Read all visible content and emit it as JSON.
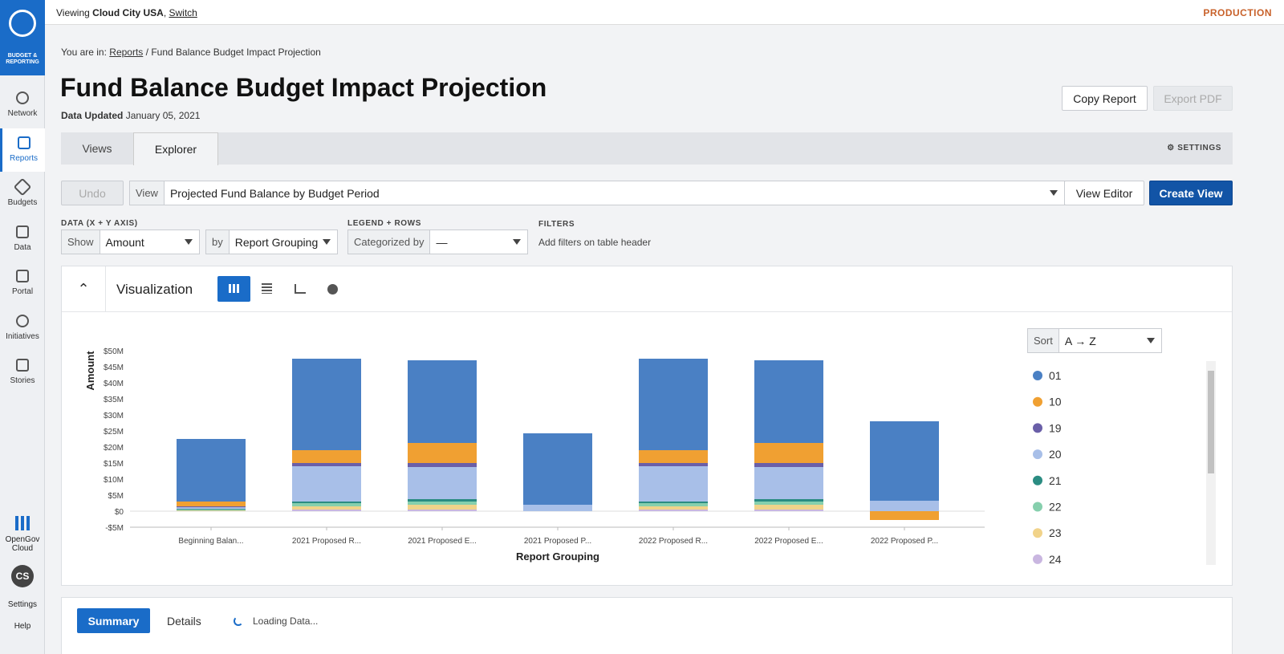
{
  "top_bar": {
    "viewing_prefix": "Viewing",
    "org": "Cloud City USA",
    "switch": "Switch",
    "environment": "PRODUCTION"
  },
  "sidebar": {
    "logo_label": "BUDGET & REPORTING",
    "items": [
      "Network",
      "Reports",
      "Budgets",
      "Data",
      "Portal",
      "Initiatives",
      "Stories"
    ],
    "cloud": "OpenGov Cloud",
    "avatar": "CS",
    "settings": "Settings",
    "help": "Help"
  },
  "breadcrumb": {
    "prefix": "You are in:",
    "link": "Reports",
    "separator": "/",
    "current": "Fund Balance Budget Impact Projection"
  },
  "header": {
    "title": "Fund Balance Budget Impact Projection",
    "updated_label": "Data Updated",
    "updated_date": "January 05, 2021",
    "copy_button": "Copy Report",
    "export_button": "Export PDF"
  },
  "tabs": [
    "Views",
    "Explorer"
  ],
  "settings": "SETTINGS",
  "toolbar": {
    "undo": "Undo",
    "view_label": "View",
    "view_value": "Projected Fund Balance by Budget Period",
    "view_editor": "View Editor",
    "create_view": "Create View"
  },
  "controls": {
    "data_label": "DATA (X + Y AXIS)",
    "show_label": "Show",
    "show_value": "Amount",
    "by_label": "by",
    "by_value": "Report Grouping",
    "legend_label": "LEGEND + ROWS",
    "categorized_label": "Categorized by",
    "categorized_value": "—",
    "filters_label": "FILTERS",
    "filters_hint": "Add filters on table header"
  },
  "visualization": {
    "title": "Visualization",
    "sort_label": "Sort",
    "sort_value": "A → Z"
  },
  "chart_data": {
    "type": "stacked_bar",
    "x_label": "Report Grouping",
    "y_label": "Amount",
    "categories": [
      "Beginning Balan...",
      "2021 Proposed R...",
      "2021 Proposed E...",
      "2021 Proposed P...",
      "2022 Proposed R...",
      "2022 Proposed E...",
      "2022 Proposed P..."
    ],
    "series": [
      {
        "name": "24",
        "color": "#c9b6e0",
        "values": [
          0,
          0.5,
          0.5,
          0,
          0.5,
          0.5,
          0
        ]
      },
      {
        "name": "23",
        "color": "#f1d38a",
        "values": [
          0.2,
          1,
          1.5,
          0,
          1,
          1.5,
          0
        ]
      },
      {
        "name": "22",
        "color": "#86cfad",
        "values": [
          0.2,
          1,
          1,
          0,
          1,
          1,
          0
        ]
      },
      {
        "name": "21",
        "color": "#2b8c82",
        "values": [
          0.3,
          0.5,
          0.75,
          0,
          0.5,
          0.75,
          0
        ]
      },
      {
        "name": "20",
        "color": "#a8bfe8",
        "values": [
          0.5,
          11,
          10,
          2,
          11,
          10,
          3.25
        ]
      },
      {
        "name": "19",
        "color": "#6a5fa8",
        "values": [
          0.3,
          1,
          1.25,
          0,
          1,
          1.25,
          0
        ]
      },
      {
        "name": "10",
        "color": "#f0a032",
        "values": [
          1.5,
          4,
          6.25,
          0,
          4,
          6.25,
          -2.75
        ]
      },
      {
        "name": "01",
        "color": "#4a80c4",
        "values": [
          19.5,
          28.5,
          25.75,
          22.25,
          28.5,
          25.75,
          24.75
        ]
      }
    ],
    "legend_order": [
      7,
      6,
      5,
      4,
      3,
      2,
      1,
      0
    ],
    "ylim": [
      -5,
      50
    ],
    "yticks": [
      {
        "value": -5,
        "label": "-$5M"
      },
      {
        "value": 0,
        "label": "$0"
      },
      {
        "value": 5,
        "label": "$5M"
      },
      {
        "value": 10,
        "label": "$10M"
      },
      {
        "value": 15,
        "label": "$15M"
      },
      {
        "value": 20,
        "label": "$20M"
      },
      {
        "value": 25,
        "label": "$25M"
      },
      {
        "value": 30,
        "label": "$30M"
      },
      {
        "value": 35,
        "label": "$35M"
      },
      {
        "value": 40,
        "label": "$40M"
      },
      {
        "value": 45,
        "label": "$45M"
      },
      {
        "value": 50,
        "label": "$50M"
      }
    ],
    "grid": false
  },
  "bottom_tabs": [
    "Summary",
    "Details"
  ],
  "loading": "Loading Data..."
}
